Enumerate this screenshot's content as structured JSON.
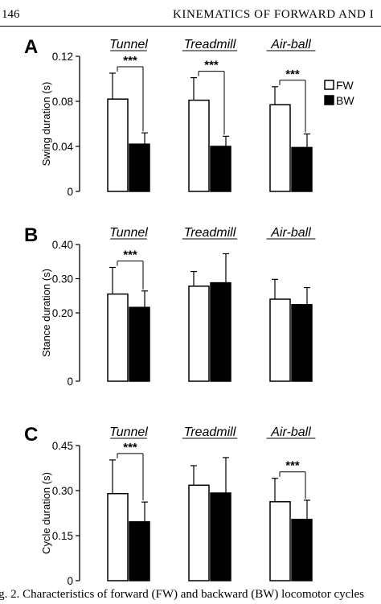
{
  "header": {
    "page_number": "146",
    "running_title": "KINEMATICS OF FORWARD AND I"
  },
  "caption": "ig. 2. Characteristics of forward (FW) and backward (BW) locomotor cycles",
  "colors": {
    "fw_fill": "#ffffff",
    "bw_fill": "#000000",
    "stroke": "#000000"
  },
  "chart_data": [
    {
      "type": "bar",
      "panel_label": "A",
      "categories": [
        "Tunnel",
        "Treadmill",
        "Air-ball"
      ],
      "ylabel": "Swing duration (s)",
      "ylim": [
        0,
        0.12
      ],
      "yticks": [
        "0",
        "0.04",
        "0.08",
        "0.12"
      ],
      "ytick_values": [
        0,
        0.04,
        0.08,
        0.12
      ],
      "legend": [
        "FW",
        "BW"
      ],
      "legend_position": "top-right",
      "series": [
        {
          "name": "FW",
          "values": [
            0.082,
            0.081,
            0.077
          ],
          "errors": [
            0.023,
            0.02,
            0.016
          ]
        },
        {
          "name": "BW",
          "values": [
            0.042,
            0.04,
            0.039
          ],
          "errors": [
            0.01,
            0.009,
            0.012
          ]
        }
      ],
      "significance": [
        {
          "category": "Tunnel",
          "label": "***"
        },
        {
          "category": "Treadmill",
          "label": "***"
        },
        {
          "category": "Air-ball",
          "label": "***"
        }
      ]
    },
    {
      "type": "bar",
      "panel_label": "B",
      "categories": [
        "Tunnel",
        "Treadmill",
        "Air-ball"
      ],
      "ylabel": "Stance duration (s)",
      "ylim": [
        0,
        0.4
      ],
      "yticks": [
        "0",
        "0.20",
        "0.30",
        "0.40"
      ],
      "ytick_values": [
        0,
        0.2,
        0.3,
        0.4
      ],
      "series": [
        {
          "name": "FW",
          "values": [
            0.255,
            0.278,
            0.24
          ],
          "errors": [
            0.078,
            0.043,
            0.058
          ]
        },
        {
          "name": "BW",
          "values": [
            0.216,
            0.288,
            0.224
          ],
          "errors": [
            0.048,
            0.085,
            0.05
          ]
        }
      ],
      "significance": [
        {
          "category": "Tunnel",
          "label": "***"
        }
      ]
    },
    {
      "type": "bar",
      "panel_label": "C",
      "categories": [
        "Tunnel",
        "Treadmill",
        "Air-ball"
      ],
      "ylabel": "Cycle duration (s)",
      "ylim": [
        0,
        0.45
      ],
      "yticks": [
        "0",
        "0.15",
        "0.30",
        "0.45"
      ],
      "ytick_values": [
        0,
        0.15,
        0.3,
        0.45
      ],
      "series": [
        {
          "name": "FW",
          "values": [
            0.29,
            0.318,
            0.263
          ],
          "errors": [
            0.112,
            0.065,
            0.078
          ]
        },
        {
          "name": "BW",
          "values": [
            0.196,
            0.292,
            0.204
          ],
          "errors": [
            0.066,
            0.118,
            0.064
          ]
        }
      ],
      "significance": [
        {
          "category": "Tunnel",
          "label": "***"
        },
        {
          "category": "Air-ball",
          "label": "***"
        }
      ]
    }
  ]
}
